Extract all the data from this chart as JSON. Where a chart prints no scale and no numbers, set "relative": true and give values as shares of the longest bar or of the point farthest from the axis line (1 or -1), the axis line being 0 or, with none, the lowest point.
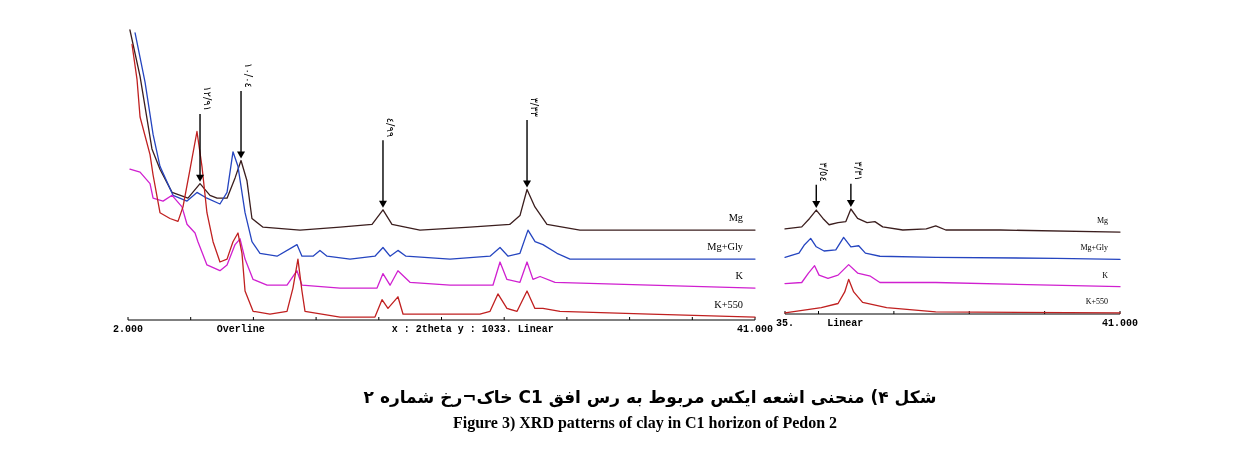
{
  "chart_data": [
    {
      "type": "line",
      "relative": true,
      "title": "شکل ۴) منحنی اشعه ایکس مربوط به رس افق C1 خاک¬رخ شماره ۲",
      "subtitle": "Figure 3) XRD patterns of clay in C1 horizon of Pedon 2",
      "xlim": [
        2,
        41
      ],
      "xticks": [
        {
          "value": 2,
          "label": "2.000"
        },
        {
          "value": 5.9,
          "label": null
        },
        {
          "value": 9.8,
          "label": null
        },
        {
          "value": 13.7,
          "label": null
        },
        {
          "value": 17.6,
          "label": null
        },
        {
          "value": 21.5,
          "label": null
        },
        {
          "value": 25.4,
          "label": null
        },
        {
          "value": 29.3,
          "label": null
        },
        {
          "value": 33.2,
          "label": null
        },
        {
          "value": 37.1,
          "label": null
        },
        {
          "value": 41,
          "label": "41.000"
        }
      ],
      "annotations": [
        "Overline",
        "x : 2theta y : 1033. Linear",
        {
          "text": "١٢/٩١",
          "x": 6.48,
          "y": 0.47
        },
        {
          "text": "١٠/٠٤",
          "x": 9.03,
          "y": 0.55
        },
        {
          "text": "٤/٩٩",
          "x": 17.86,
          "y": 0.38
        },
        {
          "text": "٣/٣٣",
          "x": 26.82,
          "y": 0.45
        }
      ],
      "series": [
        {
          "name": "Mg",
          "color": "#3b1e1e",
          "x": [
            2.12,
            2.75,
            3.49,
            3.99,
            4.74,
            5.73,
            6.48,
            7.1,
            7.54,
            8.16,
            8.66,
            9.03,
            9.4,
            9.71,
            10.4,
            12.7,
            15.19,
            17.18,
            17.86,
            18.42,
            20.16,
            23.27,
            25.76,
            26.38,
            26.82,
            27.31,
            28.06,
            30.11,
            34.47,
            41.0
          ],
          "values": [
            1.0,
            0.84,
            0.59,
            0.52,
            0.44,
            0.42,
            0.47,
            0.43,
            0.42,
            0.42,
            0.49,
            0.55,
            0.48,
            0.35,
            0.32,
            0.31,
            0.32,
            0.33,
            0.38,
            0.33,
            0.31,
            0.32,
            0.33,
            0.36,
            0.45,
            0.39,
            0.33,
            0.31,
            0.31,
            0.31
          ]
        },
        {
          "name": "Mg+Gly",
          "color": "#2545c0",
          "x": [
            2.44,
            3.06,
            3.56,
            3.99,
            4.8,
            5.67,
            6.29,
            6.91,
            7.72,
            8.16,
            8.53,
            8.84,
            9.28,
            9.71,
            10.21,
            11.27,
            12.51,
            12.82,
            13.51,
            13.94,
            14.38,
            15.81,
            17.36,
            17.86,
            18.3,
            18.79,
            19.29,
            22.03,
            24.52,
            25.14,
            25.64,
            26.38,
            26.88,
            27.32,
            27.81,
            28.68,
            29.49,
            34.47,
            41.0
          ],
          "values": [
            0.99,
            0.82,
            0.64,
            0.53,
            0.43,
            0.41,
            0.44,
            0.42,
            0.4,
            0.44,
            0.58,
            0.53,
            0.37,
            0.27,
            0.23,
            0.22,
            0.26,
            0.22,
            0.22,
            0.24,
            0.22,
            0.21,
            0.22,
            0.25,
            0.22,
            0.24,
            0.22,
            0.21,
            0.22,
            0.25,
            0.22,
            0.23,
            0.31,
            0.27,
            0.26,
            0.23,
            0.21,
            0.21,
            0.21
          ]
        },
        {
          "name": "K",
          "color": "#d020d0",
          "x": [
            2.12,
            2.75,
            3.37,
            3.56,
            4.18,
            4.74,
            5.36,
            5.67,
            6.17,
            6.35,
            6.91,
            7.72,
            8.16,
            8.66,
            8.97,
            9.28,
            9.78,
            10.65,
            11.89,
            12.51,
            12.82,
            15.19,
            17.49,
            17.86,
            18.3,
            18.79,
            19.54,
            22.03,
            24.7,
            25.14,
            25.57,
            26.38,
            26.82,
            27.19,
            27.63,
            28.56,
            34.47,
            41.0
          ],
          "values": [
            0.52,
            0.51,
            0.47,
            0.42,
            0.41,
            0.43,
            0.39,
            0.33,
            0.3,
            0.27,
            0.19,
            0.17,
            0.19,
            0.26,
            0.28,
            0.21,
            0.14,
            0.12,
            0.12,
            0.17,
            0.12,
            0.11,
            0.11,
            0.16,
            0.12,
            0.17,
            0.13,
            0.12,
            0.12,
            0.2,
            0.14,
            0.13,
            0.2,
            0.14,
            0.15,
            0.13,
            0.12,
            0.11
          ]
        },
        {
          "name": "K+550",
          "color": "#c02020",
          "x": [
            2.25,
            2.56,
            2.75,
            3.37,
            3.56,
            3.99,
            4.61,
            5.11,
            5.42,
            5.86,
            6.29,
            6.6,
            6.91,
            7.29,
            7.72,
            8.16,
            8.53,
            8.84,
            9.09,
            9.28,
            9.78,
            10.83,
            11.89,
            12.26,
            12.57,
            12.82,
            13.01,
            15.19,
            17.36,
            17.8,
            18.17,
            18.79,
            19.11,
            23.89,
            24.52,
            25.01,
            25.57,
            26.2,
            26.82,
            27.31,
            27.81,
            28.87,
            34.47,
            41.0
          ],
          "values": [
            0.95,
            0.83,
            0.7,
            0.57,
            0.5,
            0.37,
            0.35,
            0.34,
            0.39,
            0.52,
            0.65,
            0.53,
            0.37,
            0.27,
            0.2,
            0.21,
            0.27,
            0.3,
            0.23,
            0.1,
            0.03,
            0.02,
            0.03,
            0.11,
            0.21,
            0.1,
            0.03,
            0.01,
            0.01,
            0.07,
            0.04,
            0.08,
            0.02,
            0.02,
            0.03,
            0.09,
            0.04,
            0.03,
            0.1,
            0.04,
            0.04,
            0.03,
            0.02,
            0.01
          ]
        }
      ]
    },
    {
      "type": "line",
      "relative": true,
      "xlim": [
        35,
        41
      ],
      "xticks": [
        {
          "value": 35,
          "label": "35."
        },
        {
          "value": 35.6,
          "label": null
        },
        {
          "value": 36.95,
          "label": null
        },
        {
          "value": 38.3,
          "label": null
        },
        {
          "value": 39.65,
          "label": null
        },
        {
          "value": 41,
          "label": "41.000"
        }
      ],
      "annotations": [
        "Linear",
        {
          "text": "٣/٥٤",
          "x": 35.56,
          "y": 0.99
        },
        {
          "text": "٣/٣١",
          "x": 36.18,
          "y": 1.0
        }
      ],
      "series": [
        {
          "name": "Mg",
          "color": "#3b1e1e",
          "x": [
            35.0,
            35.3,
            35.44,
            35.56,
            35.68,
            35.79,
            35.95,
            36.09,
            36.18,
            36.3,
            36.47,
            36.61,
            36.75,
            37.11,
            37.53,
            37.7,
            37.88,
            38.86,
            41.0
          ],
          "values": [
            0.81,
            0.83,
            0.91,
            0.99,
            0.91,
            0.85,
            0.87,
            0.88,
            1.0,
            0.91,
            0.87,
            0.88,
            0.83,
            0.8,
            0.81,
            0.84,
            0.8,
            0.8,
            0.78
          ]
        },
        {
          "name": "Mg+Gly",
          "color": "#2545c0",
          "x": [
            35.0,
            35.25,
            35.35,
            35.46,
            35.56,
            35.7,
            35.91,
            36.05,
            36.18,
            36.32,
            36.44,
            36.7,
            37.7,
            39.86,
            41.0
          ],
          "values": [
            0.54,
            0.58,
            0.66,
            0.72,
            0.64,
            0.6,
            0.61,
            0.73,
            0.64,
            0.65,
            0.58,
            0.55,
            0.54,
            0.53,
            0.52
          ]
        },
        {
          "name": "K",
          "color": "#d020d0",
          "x": [
            35.0,
            35.3,
            35.42,
            35.53,
            35.61,
            35.77,
            35.95,
            36.14,
            36.3,
            36.53,
            36.7,
            37.7,
            41.0
          ],
          "values": [
            0.29,
            0.3,
            0.39,
            0.46,
            0.37,
            0.34,
            0.37,
            0.47,
            0.39,
            0.36,
            0.3,
            0.3,
            0.26
          ]
        },
        {
          "name": "K+550",
          "color": "#c02020",
          "x": [
            35.0,
            35.65,
            35.95,
            36.07,
            36.14,
            36.23,
            36.39,
            36.82,
            37.7,
            41.0
          ],
          "values": [
            0.01,
            0.06,
            0.1,
            0.21,
            0.33,
            0.21,
            0.11,
            0.06,
            0.02,
            0.01
          ]
        }
      ]
    }
  ]
}
